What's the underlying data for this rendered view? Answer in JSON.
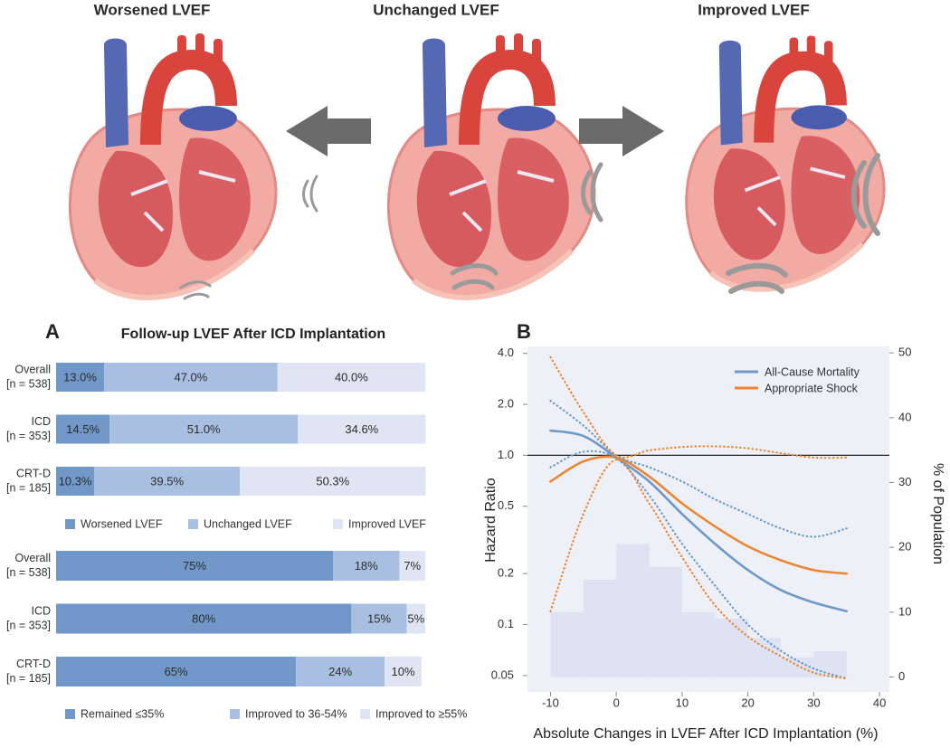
{
  "illustration": {
    "labels": [
      "Worsened LVEF",
      "Unchanged LVEF",
      "Improved LVEF"
    ]
  },
  "chart_data": [
    {
      "type": "bar",
      "orientation": "horizontal",
      "stacked": true,
      "panel_label": "A",
      "title": "Follow-up LVEF After ICD Implantation",
      "categories": [
        "Overall",
        "ICD",
        "CRT-D"
      ],
      "category_sublabels": [
        "[n = 538]",
        "[n = 353]",
        "[n = 185]"
      ],
      "xlim": [
        0,
        100
      ],
      "legend": "bottom",
      "series": [
        {
          "name": "Worsened LVEF",
          "color": "#7198c8",
          "values": [
            13.0,
            14.5,
            10.3
          ],
          "value_labels": [
            "13.0%",
            "14.5%",
            "10.3%"
          ]
        },
        {
          "name": "Unchanged LVEF",
          "color": "#a9bfe1",
          "values": [
            47.0,
            51.0,
            39.5
          ],
          "value_labels": [
            "47.0%",
            "51.0%",
            "39.5%"
          ]
        },
        {
          "name": "Improved LVEF",
          "color": "#dfe5f3",
          "values": [
            40.0,
            34.6,
            50.3
          ],
          "value_labels": [
            "40.0%",
            "34.6%",
            "50.3%"
          ]
        }
      ]
    },
    {
      "type": "bar",
      "orientation": "horizontal",
      "stacked": true,
      "categories": [
        "Overall",
        "ICD",
        "CRT-D"
      ],
      "category_sublabels": [
        "[n = 538]",
        "[n = 353]",
        "[n = 185]"
      ],
      "xlim": [
        0,
        100
      ],
      "legend": "bottom",
      "series": [
        {
          "name": "Remained ≤35%",
          "color": "#7198c8",
          "values": [
            75,
            80,
            65
          ],
          "value_labels": [
            "75%",
            "80%",
            "65%"
          ]
        },
        {
          "name": "Improved to 36-54%",
          "color": "#a9bfe1",
          "values": [
            18,
            15,
            24
          ],
          "value_labels": [
            "18%",
            "15%",
            "24%"
          ]
        },
        {
          "name": "Improved to ≥55%",
          "color": "#dfe5f3",
          "values": [
            7,
            5,
            10
          ],
          "value_labels": [
            "7%",
            "5%",
            "10%"
          ]
        }
      ]
    },
    {
      "type": "line",
      "panel_label": "B",
      "xlabel": "Absolute Changes in LVEF After ICD Implantation (%)",
      "ylabel": "Hazard Ratio",
      "y2label": "% of Population",
      "x": [
        -10,
        -5,
        0,
        5,
        10,
        15,
        20,
        25,
        30,
        35
      ],
      "xlim": [
        -13.5,
        41.5
      ],
      "xticks": [
        -10,
        0,
        10,
        20,
        30,
        40
      ],
      "log_y": true,
      "ylim": [
        0.04,
        4.4
      ],
      "yticks": [
        {
          "value": 4,
          "label": "4.0"
        },
        {
          "value": 2,
          "label": "2.0"
        },
        {
          "value": 1,
          "label": "1.0"
        },
        0.5,
        0.2,
        0.1,
        0.05
      ],
      "y2lim": [
        -2.3,
        51
      ],
      "y2ticks": [
        0,
        10,
        20,
        30,
        40,
        50
      ],
      "reference_line": 1,
      "legend": "upper right",
      "series": [
        {
          "name": "All-Cause Mortality",
          "color": "#6f98c9",
          "values": [
            1.4,
            1.3,
            0.97,
            0.7,
            0.45,
            0.3,
            0.21,
            0.16,
            0.135,
            0.12
          ]
        },
        {
          "name": "Appropriate Shock",
          "color": "#ec8633",
          "values": [
            0.7,
            0.92,
            0.97,
            0.75,
            0.52,
            0.38,
            0.29,
            0.24,
            0.21,
            0.2
          ]
        },
        {
          "color": "#6f98c9",
          "dashed": true,
          "values": [
            2.1,
            1.5,
            1.0,
            0.85,
            0.7,
            0.55,
            0.45,
            0.37,
            0.33,
            0.37
          ]
        },
        {
          "color": "#6f98c9",
          "dashed": true,
          "values": [
            0.85,
            1.05,
            0.96,
            0.58,
            0.3,
            0.17,
            0.1,
            0.07,
            0.055,
            0.048
          ]
        },
        {
          "color": "#ec8633",
          "dashed": true,
          "values": [
            3.8,
            1.8,
            1.0,
            1.07,
            1.12,
            1.13,
            1.1,
            1.03,
            0.97,
            0.97
          ]
        },
        {
          "color": "#ec8633",
          "dashed": true,
          "values": [
            0.12,
            0.45,
            0.94,
            0.52,
            0.25,
            0.13,
            0.085,
            0.065,
            0.052,
            0.048
          ]
        }
      ],
      "histogram": {
        "axis": "y2",
        "color": "#dde3f3",
        "bins": [
          -10,
          -5,
          0,
          5,
          10,
          15,
          20,
          25,
          30,
          35
        ],
        "counts": [
          10,
          15,
          20.5,
          17,
          10,
          9,
          6,
          3,
          4
        ]
      }
    }
  ]
}
